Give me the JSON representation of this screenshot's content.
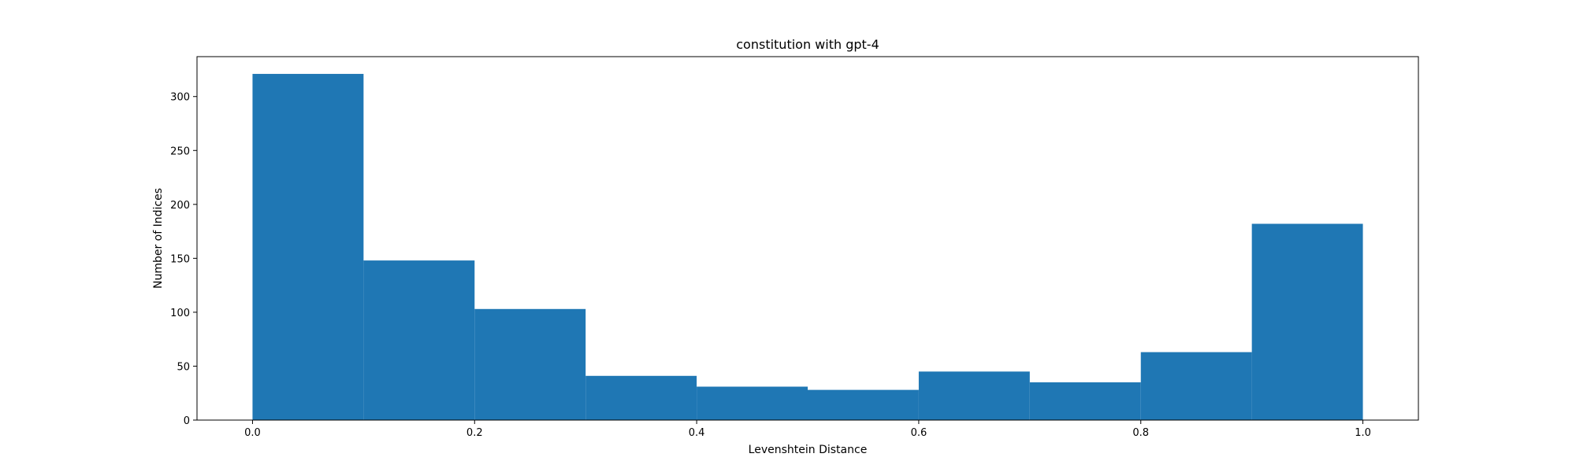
{
  "chart_data": {
    "type": "bar",
    "title": "constitution with gpt-4",
    "xlabel": "Levenshtein Distance",
    "ylabel": "Number of Indices",
    "bins": [
      {
        "x0": 0.0,
        "x1": 0.1,
        "value": 321
      },
      {
        "x0": 0.1,
        "x1": 0.2,
        "value": 148
      },
      {
        "x0": 0.2,
        "x1": 0.3,
        "value": 103
      },
      {
        "x0": 0.3,
        "x1": 0.4,
        "value": 41
      },
      {
        "x0": 0.4,
        "x1": 0.5,
        "value": 31
      },
      {
        "x0": 0.5,
        "x1": 0.6,
        "value": 28
      },
      {
        "x0": 0.6,
        "x1": 0.7,
        "value": 45
      },
      {
        "x0": 0.7,
        "x1": 0.8,
        "value": 35
      },
      {
        "x0": 0.8,
        "x1": 0.9,
        "value": 63
      },
      {
        "x0": 0.9,
        "x1": 1.0,
        "value": 182
      }
    ],
    "xlim": [
      -0.05,
      1.05
    ],
    "ylim": [
      0,
      337
    ],
    "xticks": [
      0.0,
      0.2,
      0.4,
      0.6,
      0.8,
      1.0
    ],
    "xtick_labels": [
      "0.0",
      "0.2",
      "0.4",
      "0.6",
      "0.8",
      "1.0"
    ],
    "yticks": [
      0,
      50,
      100,
      150,
      200,
      250,
      300
    ],
    "ytick_labels": [
      "0",
      "50",
      "100",
      "150",
      "200",
      "250",
      "300"
    ],
    "grid": false,
    "legend": "none",
    "bar_color": "#1f77b4"
  }
}
